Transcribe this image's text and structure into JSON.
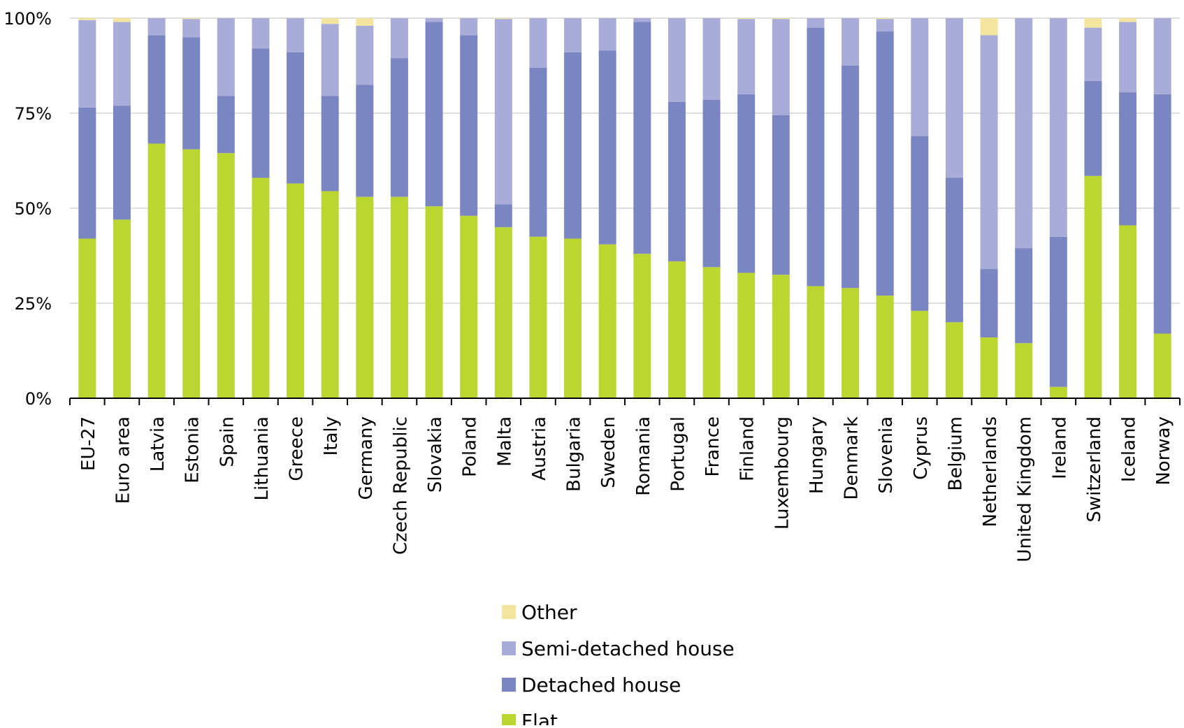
{
  "chart_data": {
    "type": "bar",
    "stacked": true,
    "percent": true,
    "title": "",
    "xlabel": "",
    "ylabel": "",
    "ylim": [
      0,
      100
    ],
    "yticks": [
      0,
      25,
      50,
      75,
      100
    ],
    "ytick_labels": [
      "0%",
      "25%",
      "50%",
      "75%",
      "100%"
    ],
    "grid": true,
    "legend_position": "bottom",
    "categories": [
      "EU-27",
      "Euro area",
      "Latvia",
      "Estonia",
      "Spain",
      "Lithuania",
      "Greece",
      "Italy",
      "Germany",
      "Czech Republic",
      "Slovakia",
      "Poland",
      "Malta",
      "Austria",
      "Bulgaria",
      "Sweden",
      "Romania",
      "Portugal",
      "France",
      "Finland",
      "Luxembourg",
      "Hungary",
      "Denmark",
      "Slovenia",
      "Cyprus",
      "Belgium",
      "Netherlands",
      "United Kingdom",
      "Ireland",
      "Switzerland",
      "Iceland",
      "Norway"
    ],
    "series": [
      {
        "name": "Flat",
        "color": "#bcd631",
        "values": [
          42,
          47,
          67,
          65.5,
          64.5,
          58,
          56.5,
          54.5,
          53,
          53,
          50.5,
          48,
          45,
          42.5,
          42,
          40.5,
          38,
          36,
          34.5,
          33,
          32.5,
          29.5,
          29,
          27,
          23,
          20,
          16,
          14.5,
          3,
          58.5,
          45.5,
          17
        ]
      },
      {
        "name": "Detached house",
        "color": "#7a86c2",
        "values": [
          34.5,
          30,
          28.5,
          29.5,
          15,
          34,
          34.5,
          25,
          29.5,
          36.5,
          48.5,
          47.5,
          6,
          44.5,
          49,
          51,
          61,
          42,
          44,
          47,
          42,
          68,
          58.5,
          69.5,
          46,
          38,
          18,
          25,
          39.5,
          25,
          35,
          63
        ]
      },
      {
        "name": "Semi-detached house",
        "color": "#a9acd9",
        "values": [
          23,
          22,
          4.5,
          4.8,
          20.5,
          8,
          9,
          19,
          15.5,
          10.5,
          1,
          4.5,
          48.8,
          13,
          9,
          8.5,
          1,
          22,
          21.5,
          19.8,
          25.3,
          2.5,
          12.5,
          3.3,
          31,
          42,
          61.5,
          60.5,
          57.5,
          14,
          18.5,
          20
        ]
      },
      {
        "name": "Other",
        "color": "#f3e49e",
        "values": [
          0.5,
          1,
          0,
          0.2,
          0,
          0,
          0,
          1.5,
          2,
          0,
          0,
          0,
          0.2,
          0,
          0,
          0,
          0,
          0,
          0,
          0.2,
          0.2,
          0,
          0,
          0.2,
          0,
          0,
          4.5,
          0,
          0,
          2.5,
          1,
          0
        ]
      }
    ]
  }
}
